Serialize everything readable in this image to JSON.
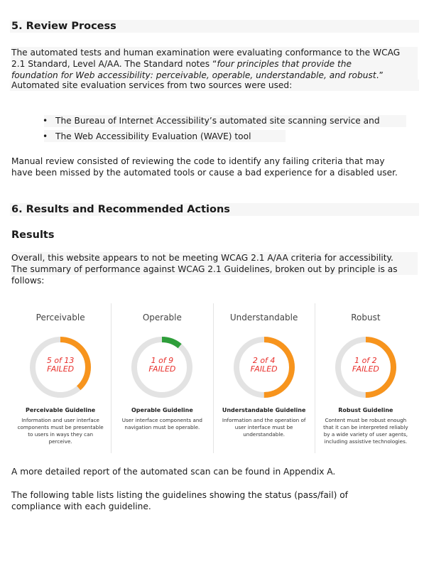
{
  "section5": {
    "heading": "5. Review Process",
    "p1_lines": [
      "The automated tests and human examination were evaluating conformance to the WCAG",
      "2.1 Standard, Level A/AA. The Standard notes “"
    ],
    "p1_line2_italic": "four principles that provide the",
    "p1_line3_italic": "foundation for Web accessibility: perceivable, operable, understandable, and robust",
    "p1_line3_end": ".”",
    "p2": "Automated site evaluation services from two sources were used:",
    "bullets": [
      "The Bureau of Internet Accessibility’s automated site scanning service and",
      "The Web Accessibility Evaluation (WAVE) tool"
    ],
    "p3_lines": [
      "Manual review consisted of reviewing the code to identify any failing criteria that may",
      "have been missed by the automated tools or cause a bad experience for a disabled user."
    ]
  },
  "section6": {
    "heading": "6. Results and Recommended Actions",
    "results_heading": "Results",
    "p1_lines": [
      "Overall, this website appears to not be meeting WCAG 2.1 A/AA criteria for accessibility.",
      "The summary of performance against WCAG 2.1 Guidelines, broken out by principle is as",
      "follows:"
    ],
    "cards": [
      {
        "title": "Perceivable",
        "ring_line1": "5 of 13",
        "ring_line2": "FAILED",
        "failed": 5,
        "total": 13,
        "ring_color": "#f7941d",
        "guideline": "Perceivable Guideline",
        "desc": "Information and user interface components must be presentable to users in ways they can perceive."
      },
      {
        "title": "Operable",
        "ring_line1": "1 of 9",
        "ring_line2": "FAILED",
        "failed": 1,
        "total": 9,
        "ring_color": "#2e9e3a",
        "guideline": "Operable Guideline",
        "desc": "User interface components and navigation must be operable."
      },
      {
        "title": "Understandable",
        "ring_line1": "2 of 4",
        "ring_line2": "FAILED",
        "failed": 2,
        "total": 4,
        "ring_color": "#f7941d",
        "guideline": "Understandable Guideline",
        "desc": "Information and the operation of user interface must be understandable."
      },
      {
        "title": "Robust",
        "ring_line1": "1 of 2",
        "ring_line2": "FAILED",
        "failed": 1,
        "total": 2,
        "ring_color": "#f7941d",
        "guideline": "Robust Guideline",
        "desc": "Content must be robust enough that it can be interpreted reliably by a wide variety of user agents, including assistive technologies."
      }
    ],
    "p_detail": "A more detailed report of the automated scan can be found in Appendix A.",
    "p_table_lines": [
      "The following table lists listing the guidelines showing the status (pass/fail) of",
      "compliance with each guideline."
    ]
  },
  "colors": {
    "ring_track": "#e3e3e3",
    "failed_text": "#e8302c",
    "shade": "#f6f6f6"
  }
}
